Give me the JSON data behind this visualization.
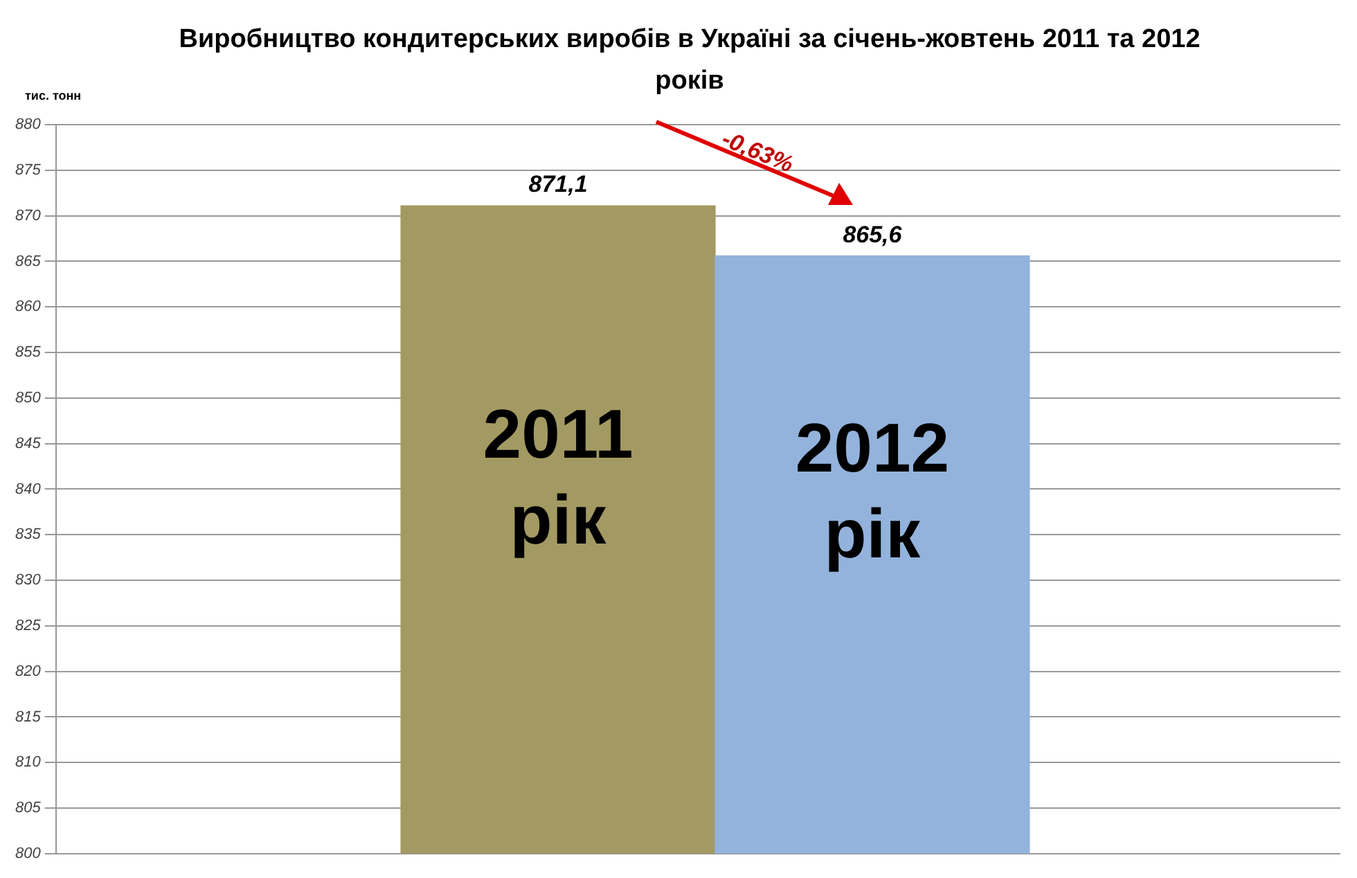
{
  "chart_data": {
    "type": "bar",
    "title": "Виробництво кондитерських виробів в Україні за січень-жовтень 2011 та 2012 років",
    "ylabel": "тис. тонн",
    "categories": [
      "2011 рік",
      "2012 рік"
    ],
    "values": [
      871.1,
      865.6
    ],
    "value_labels": [
      "871,1",
      "865,6"
    ],
    "colors": [
      "#a39a63",
      "#93b3dc"
    ],
    "ylim": [
      800,
      880
    ],
    "yticks": [
      800,
      805,
      810,
      815,
      820,
      825,
      830,
      835,
      840,
      845,
      850,
      855,
      860,
      865,
      870,
      875,
      880
    ],
    "grid": "y",
    "legend": false,
    "annotations": [
      "-0,63%"
    ]
  }
}
